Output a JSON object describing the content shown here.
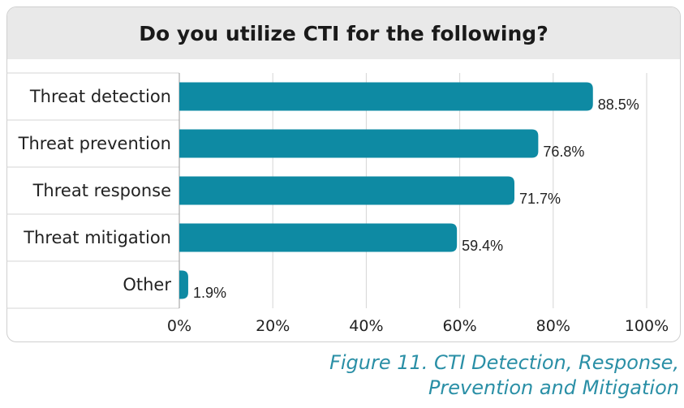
{
  "header": {
    "title": "Do you utilize CTI for the following?"
  },
  "caption": {
    "line1": "Figure 11. CTI Detection, Response,",
    "line2": "Prevention and Mitigation"
  },
  "colors": {
    "bar": "#0e8aa3",
    "grid": "#d6d6d6",
    "header_bg": "#e9e9e9",
    "caption": "#2a8fa6"
  },
  "chart_data": {
    "type": "bar",
    "orientation": "horizontal",
    "title": "Do you utilize CTI for the following?",
    "categories": [
      "Threat detection",
      "Threat prevention",
      "Threat response",
      "Threat mitigation",
      "Other"
    ],
    "values": [
      88.5,
      76.8,
      71.7,
      59.4,
      1.9
    ],
    "value_labels": [
      "88.5%",
      "76.8%",
      "71.7%",
      "59.4%",
      "1.9%"
    ],
    "xlim": [
      0,
      100
    ],
    "x_ticks": [
      0,
      20,
      40,
      60,
      80,
      100
    ],
    "x_tick_labels": [
      "0%",
      "20%",
      "40%",
      "60%",
      "80%",
      "100%"
    ],
    "grid": true
  }
}
